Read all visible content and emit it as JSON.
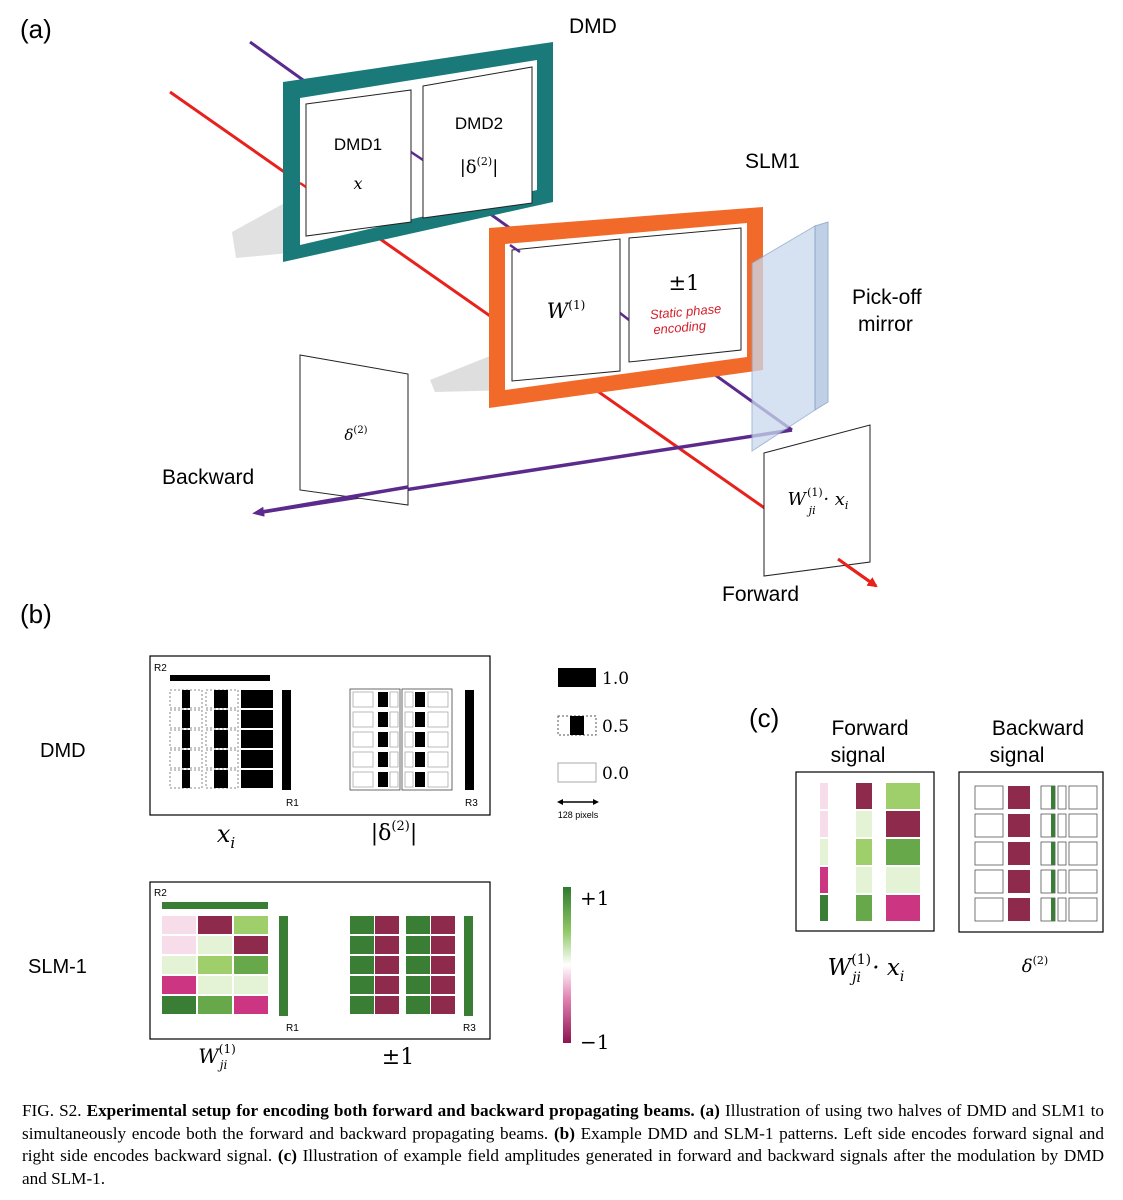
{
  "panel_labels": {
    "a": "(a)",
    "b": "(b)",
    "c": "(c)"
  },
  "setup": {
    "dmd_label": "DMD",
    "dmd1": {
      "name": "DMD1",
      "symbol": "x"
    },
    "dmd2": {
      "name": "DMD2",
      "symbol_left": "|δ",
      "symbol_sup": "(2)",
      "symbol_right": "|"
    },
    "slm1_label": "SLM1",
    "slm_left": {
      "symbol": "W",
      "sup": "(1)"
    },
    "slm_right": {
      "symbol": "±1",
      "note_line1": "Static phase",
      "note_line2": "encoding"
    },
    "pickoff_line1": "Pick-off",
    "pickoff_line2": "mirror",
    "backward_label": "Backward",
    "forward_label": "Forward",
    "delta_screen": {
      "symbol": "δ",
      "sup": "(2)"
    },
    "forward_screen": {
      "symbol": "W",
      "sup": "(1)",
      "sub": "ji",
      "tail": " · x",
      "tail_sub": "i"
    }
  },
  "panel_b": {
    "row_labels": [
      "DMD",
      "SLM-1"
    ],
    "region_labels": [
      "R2",
      "R1",
      "R3"
    ],
    "dmd_captions": {
      "left_symbol": "x",
      "left_sub": "i",
      "right_left": "|δ",
      "right_sup": "(2)",
      "right_right": "|"
    },
    "slm_captions": {
      "left_symbol": "W",
      "left_sup": "(1)",
      "left_sub": "ji",
      "right": "±1"
    },
    "dmd_legend": [
      "1.0",
      "0.5",
      "0.0"
    ],
    "scale_bar": "128 pixels",
    "colorbar": {
      "max": "+1",
      "min": "−1"
    },
    "colors": {
      "green_dark": "#3a7d35",
      "green_mid": "#66a84a",
      "green_light": "#9fcf6b",
      "green_pale": "#e4f2d6",
      "pink_pale": "#f7dde9",
      "pink_mid": "#cc3582",
      "maroon": "#8e2a4c",
      "white": "#ffffff"
    }
  },
  "panel_c": {
    "forward_title_line1": "Forward",
    "forward_title_line2": "signal",
    "backward_title_line1": "Backward",
    "backward_title_line2": "signal",
    "forward_caption": {
      "symbol": "W",
      "sup": "(1)",
      "sub": "ji",
      "tail": " · x",
      "tail_sub": "i"
    },
    "backward_caption": {
      "symbol": "δ",
      "sup": "(2)"
    }
  },
  "caption": {
    "lead": "FIG. S2.",
    "bold_title": "Experimental setup for encoding both forward and backward propagating beams.",
    "part_a_label": "(a)",
    "part_a": "Illustration of using two halves of DMD and SLM1 to simultaneously encode both the forward and backward propagating beams.",
    "part_b_label": "(b)",
    "part_b": "Example DMD and SLM-1 patterns. Left side encodes forward signal and right side encodes backward signal.",
    "part_c_label": "(c)",
    "part_c": "Illustration of example field amplitudes generated in forward and backward signals after the modulation by DMD and SLM-1."
  }
}
